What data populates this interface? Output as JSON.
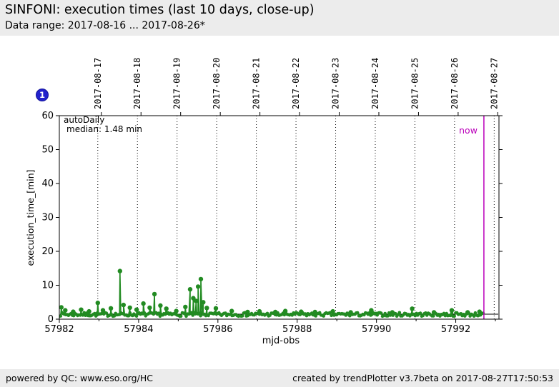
{
  "header": {
    "title": "SINFONI: execution times (last 10 days, close-up)",
    "subtitle": "Data range: 2017-08-16 ... 2017-08-26*"
  },
  "badge": {
    "label": "1",
    "color": "#2222cc"
  },
  "footer": {
    "left": "powered by QC: www.eso.org/HC",
    "right": "created by trendPlotter v3.7beta on 2017-08-27T17:50:53"
  },
  "chart_data": {
    "type": "line",
    "marker": "circle",
    "title": "SINFONI: execution times (last 10 days, close-up)",
    "xlabel": "mjd-obs",
    "ylabel": "execution_time_[min]",
    "xlim": [
      57982,
      57993.09
    ],
    "ylim": [
      0,
      60
    ],
    "y_ticks": [
      0,
      10,
      20,
      30,
      40,
      50,
      60
    ],
    "x_major_ticks": [
      57982,
      57984,
      57986,
      57988,
      57990,
      57992
    ],
    "x_minor_ticks": [
      57983,
      57985,
      57987,
      57989,
      57991,
      57993
    ],
    "grid": "vertical-dotted",
    "legend": {
      "position": "top-left",
      "series_label": "autoDaily",
      "median_label": "median: 1.48 min"
    },
    "median_value": 1.48,
    "median_line_color": "#000000",
    "now": {
      "label": "now",
      "mjd": 57992.71,
      "color": "#bb00bb"
    },
    "top_axis": {
      "ticks": [
        {
          "label": "2017-08-17",
          "mjd": 57982.97
        },
        {
          "label": "2017-08-18",
          "mjd": 57983.97
        },
        {
          "label": "2017-08-19",
          "mjd": 57984.97
        },
        {
          "label": "2017-08-20",
          "mjd": 57985.97
        },
        {
          "label": "2017-08-21",
          "mjd": 57986.97
        },
        {
          "label": "2017-08-22",
          "mjd": 57987.97
        },
        {
          "label": "2017-08-23",
          "mjd": 57988.97
        },
        {
          "label": "2017-08-24",
          "mjd": 57989.97
        },
        {
          "label": "2017-08-25",
          "mjd": 57990.97
        },
        {
          "label": "2017-08-26",
          "mjd": 57991.97
        },
        {
          "label": "2017-08-27",
          "mjd": 57992.97
        }
      ]
    },
    "series": [
      {
        "name": "autoDaily",
        "color": "#228b22",
        "baseline": {
          "note": "dense noisy floor of points, estimated from pixels",
          "x_start": 57982.0,
          "x_end": 57992.71,
          "step": 0.033,
          "value_min": 0.85,
          "value_max": 1.95
        },
        "spikes": [
          [
            57982.05,
            3.5
          ],
          [
            57982.15,
            2.6
          ],
          [
            57982.35,
            2.2
          ],
          [
            57982.55,
            2.8
          ],
          [
            57982.75,
            2.3
          ],
          [
            57982.97,
            4.8
          ],
          [
            57983.1,
            2.6
          ],
          [
            57983.3,
            3.2
          ],
          [
            57983.53,
            14.2
          ],
          [
            57983.62,
            4.2
          ],
          [
            57983.78,
            3.4
          ],
          [
            57983.95,
            2.8
          ],
          [
            57984.12,
            4.6
          ],
          [
            57984.28,
            3.4
          ],
          [
            57984.4,
            7.4
          ],
          [
            57984.55,
            4.0
          ],
          [
            57984.7,
            3.1
          ],
          [
            57984.95,
            2.4
          ],
          [
            57985.18,
            3.6
          ],
          [
            57985.3,
            8.8
          ],
          [
            57985.38,
            6.2
          ],
          [
            57985.45,
            5.4
          ],
          [
            57985.5,
            9.6
          ],
          [
            57985.57,
            11.8
          ],
          [
            57985.63,
            5.0
          ],
          [
            57985.72,
            3.3
          ],
          [
            57985.95,
            3.2
          ],
          [
            57986.35,
            2.4
          ],
          [
            57986.75,
            2.1
          ],
          [
            57987.05,
            2.3
          ],
          [
            57987.45,
            2.1
          ],
          [
            57987.7,
            2.4
          ],
          [
            57988.1,
            2.2
          ],
          [
            57988.45,
            2.1
          ],
          [
            57988.9,
            2.3
          ],
          [
            57989.35,
            2.0
          ],
          [
            57989.87,
            2.6
          ],
          [
            57990.4,
            2.0
          ],
          [
            57990.9,
            3.1
          ],
          [
            57991.45,
            2.0
          ],
          [
            57991.9,
            2.6
          ],
          [
            57992.3,
            2.0
          ],
          [
            57992.6,
            2.2
          ]
        ]
      }
    ]
  }
}
